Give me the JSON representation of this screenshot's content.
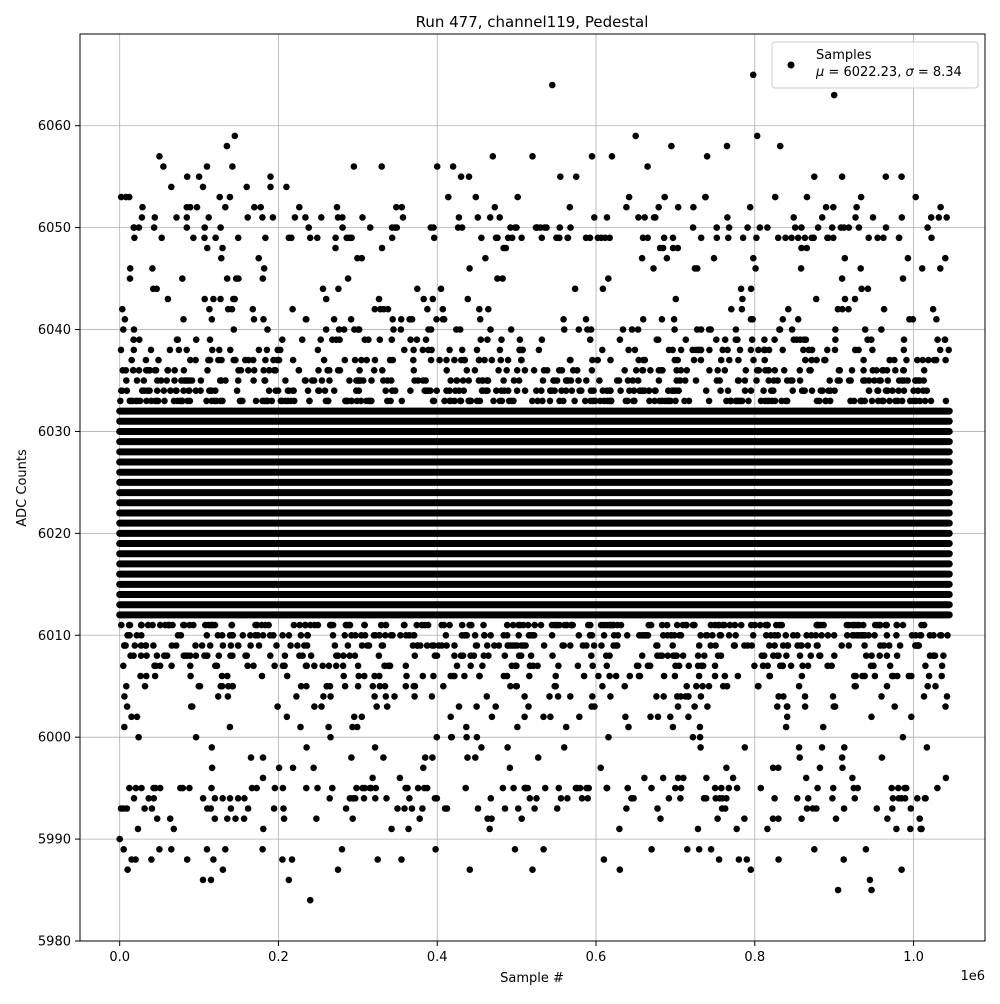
{
  "chart_data": {
    "type": "scatter",
    "title": "Run 477, channel119, Pedestal",
    "xlabel": "Sample #",
    "ylabel": "ADC Counts",
    "x_offset_text": "1e6",
    "xlim": [
      -0.05,
      1.09
    ],
    "ylim": [
      5980,
      6069
    ],
    "x_ticks": [
      0.0,
      0.2,
      0.4,
      0.6,
      0.8,
      1.0
    ],
    "x_tick_labels": [
      "0.0",
      "0.2",
      "0.4",
      "0.6",
      "0.8",
      "1.0"
    ],
    "y_ticks": [
      5980,
      5990,
      6000,
      6010,
      6020,
      6030,
      6040,
      6050,
      6060
    ],
    "y_tick_labels": [
      "5980",
      "5990",
      "6000",
      "6010",
      "6020",
      "6030",
      "6040",
      "6050",
      "6060"
    ],
    "grid": true,
    "legend_position": "top-right",
    "legend": {
      "label_line1": "Samples",
      "label_line2_mu": "μ",
      "label_line2_mu_value": " = 6022.23, ",
      "label_line2_sigma": "σ",
      "label_line2_sigma_value": " = 8.34"
    },
    "series": [
      {
        "name": "Samples",
        "color": "#000000",
        "x_range": [
          0.0,
          1.045
        ],
        "dense_y_range": [
          5996,
          6048
        ],
        "mean": 6022.23,
        "std": 8.34,
        "outliers": [
          [
            0.0,
            5990
          ],
          [
            0.005,
            5989
          ],
          [
            0.01,
            5987
          ],
          [
            0.015,
            5988
          ],
          [
            0.02,
            5988
          ],
          [
            0.04,
            5988
          ],
          [
            0.05,
            5989
          ],
          [
            0.065,
            5989
          ],
          [
            0.085,
            5988
          ],
          [
            0.105,
            5986
          ],
          [
            0.11,
            5989
          ],
          [
            0.115,
            5986
          ],
          [
            0.118,
            5988
          ],
          [
            0.13,
            5987
          ],
          [
            0.133,
            5989
          ],
          [
            0.18,
            5989
          ],
          [
            0.205,
            5988
          ],
          [
            0.213,
            5986
          ],
          [
            0.217,
            5988
          ],
          [
            0.24,
            5984
          ],
          [
            0.275,
            5987
          ],
          [
            0.28,
            5989
          ],
          [
            0.325,
            5988
          ],
          [
            0.355,
            5988
          ],
          [
            0.398,
            5989
          ],
          [
            0.441,
            5987
          ],
          [
            0.498,
            5989
          ],
          [
            0.52,
            5987
          ],
          [
            0.534,
            5989
          ],
          [
            0.61,
            5988
          ],
          [
            0.63,
            5987
          ],
          [
            0.67,
            5989
          ],
          [
            0.715,
            5989
          ],
          [
            0.73,
            5989
          ],
          [
            0.745,
            5989
          ],
          [
            0.755,
            5988
          ],
          [
            0.78,
            5988
          ],
          [
            0.79,
            5988
          ],
          [
            0.795,
            5987
          ],
          [
            0.83,
            5988
          ],
          [
            0.875,
            5989
          ],
          [
            0.905,
            5985
          ],
          [
            0.912,
            5988
          ],
          [
            0.94,
            5989
          ],
          [
            0.945,
            5986
          ],
          [
            0.947,
            5985
          ],
          [
            0.985,
            5987
          ],
          [
            0.008,
            6053
          ],
          [
            0.012,
            6053
          ],
          [
            0.05,
            6057
          ],
          [
            0.055,
            6056
          ],
          [
            0.065,
            6054
          ],
          [
            0.085,
            6055
          ],
          [
            0.1,
            6055
          ],
          [
            0.105,
            6054
          ],
          [
            0.11,
            6056
          ],
          [
            0.135,
            6058
          ],
          [
            0.142,
            6056
          ],
          [
            0.145,
            6059
          ],
          [
            0.16,
            6054
          ],
          [
            0.19,
            6055
          ],
          [
            0.19,
            6054
          ],
          [
            0.21,
            6054
          ],
          [
            0.295,
            6056
          ],
          [
            0.33,
            6056
          ],
          [
            0.4,
            6056
          ],
          [
            0.42,
            6056
          ],
          [
            0.43,
            6055
          ],
          [
            0.44,
            6055
          ],
          [
            0.47,
            6057
          ],
          [
            0.52,
            6057
          ],
          [
            0.545,
            6064
          ],
          [
            0.555,
            6055
          ],
          [
            0.575,
            6055
          ],
          [
            0.595,
            6057
          ],
          [
            0.62,
            6057
          ],
          [
            0.65,
            6059
          ],
          [
            0.665,
            6056
          ],
          [
            0.695,
            6058
          ],
          [
            0.74,
            6057
          ],
          [
            0.765,
            6058
          ],
          [
            0.798,
            6065
          ],
          [
            0.803,
            6059
          ],
          [
            0.832,
            6058
          ],
          [
            0.875,
            6055
          ],
          [
            0.9,
            6063
          ],
          [
            0.91,
            6055
          ],
          [
            0.965,
            6055
          ],
          [
            0.985,
            6055
          ]
        ]
      }
    ]
  }
}
